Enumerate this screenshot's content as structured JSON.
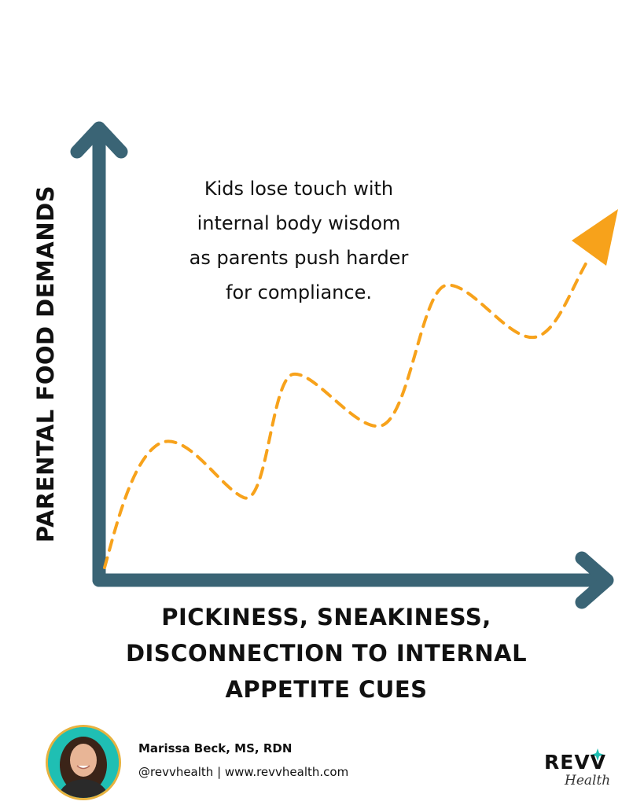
{
  "diagram": {
    "y_axis_label": "PARENTAL FOOD DEMANDS",
    "x_axis_label_lines": [
      "PICKINESS, SNEAKINESS,",
      "DISCONNECTION TO INTERNAL",
      "APPETITE CUES"
    ],
    "annotation_lines": [
      "Kids lose touch with",
      "internal body wisdom",
      "as parents push harder",
      "for compliance."
    ],
    "colors": {
      "axis": "#3a6475",
      "trend": "#f7a21b",
      "text": "#111111"
    },
    "trend_style": "dashed, wavy, rising",
    "trend_arrow_icon": "arrow-up-right-icon"
  },
  "footer": {
    "name": "Marissa Beck, MS, RDN",
    "contact": "@revvhealth | www.revvhealth.com",
    "avatar_icon": "author-photo",
    "logo_text": "REVV",
    "logo_subtext": "Health",
    "colors": {
      "avatar_border": "#e7b23f",
      "avatar_bg": "#1fbfb3",
      "logo_accent": "#1fbfb3"
    }
  }
}
